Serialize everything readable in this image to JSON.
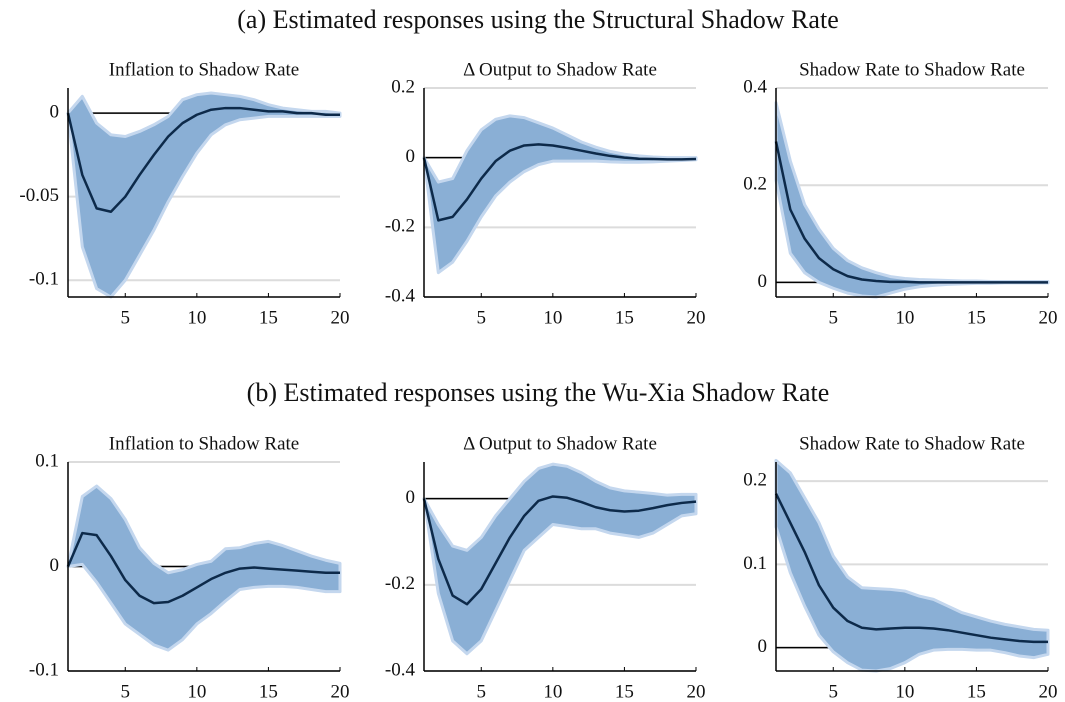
{
  "headings": [
    "(a) Estimated responses using the Structural Shadow Rate",
    "(b) Estimated responses using the Wu-Xia Shadow Rate"
  ],
  "chart_data": [
    {
      "type": "line",
      "title": "Inflation to Shadow Rate",
      "x": [
        1,
        2,
        3,
        4,
        5,
        6,
        7,
        8,
        9,
        10,
        11,
        12,
        13,
        14,
        15,
        16,
        17,
        18,
        19,
        20
      ],
      "series": [
        {
          "color": "#0d2a4a",
          "values": [
            0,
            -0.037,
            -0.057,
            -0.059,
            -0.05,
            -0.037,
            -0.025,
            -0.014,
            -0.006,
            -0.001,
            0.002,
            0.003,
            0.003,
            0.002,
            0.001,
            0.001,
            0,
            0,
            -0.001,
            -0.001
          ]
        }
      ],
      "band": {
        "color": "#8aafd5",
        "upper": [
          0,
          0.01,
          -0.006,
          -0.013,
          -0.014,
          -0.011,
          -0.007,
          -0.002,
          0.008,
          0.011,
          0.012,
          0.011,
          0.01,
          0.008,
          0.005,
          0.003,
          0.002,
          0.001,
          0.001,
          0
        ],
        "lower": [
          0,
          -0.08,
          -0.105,
          -0.11,
          -0.1,
          -0.085,
          -0.07,
          -0.053,
          -0.038,
          -0.024,
          -0.013,
          -0.007,
          -0.004,
          -0.003,
          -0.002,
          -0.002,
          -0.002,
          -0.002,
          -0.002,
          -0.002
        ]
      },
      "xlim": [
        1,
        20
      ],
      "xticks": [
        5,
        10,
        15,
        20
      ],
      "ylim": [
        -0.11,
        0.015
      ],
      "yticks": [
        -0.1,
        -0.05,
        0
      ],
      "grid": true
    },
    {
      "type": "line",
      "title": "Δ Output to Shadow Rate",
      "x": [
        1,
        2,
        3,
        4,
        5,
        6,
        7,
        8,
        9,
        10,
        11,
        12,
        13,
        14,
        15,
        16,
        17,
        18,
        19,
        20
      ],
      "series": [
        {
          "color": "#0d2a4a",
          "values": [
            0,
            -0.18,
            -0.17,
            -0.12,
            -0.06,
            -0.01,
            0.02,
            0.035,
            0.038,
            0.035,
            0.028,
            0.02,
            0.012,
            0.005,
            0,
            -0.003,
            -0.004,
            -0.005,
            -0.005,
            -0.004
          ]
        }
      ],
      "band": {
        "color": "#8aafd5",
        "upper": [
          0,
          -0.07,
          -0.06,
          0.02,
          0.08,
          0.11,
          0.12,
          0.115,
          0.1,
          0.085,
          0.065,
          0.045,
          0.03,
          0.018,
          0.01,
          0.005,
          0.002,
          0,
          0,
          0
        ],
        "lower": [
          0,
          -0.33,
          -0.3,
          -0.24,
          -0.17,
          -0.11,
          -0.07,
          -0.04,
          -0.02,
          -0.01,
          -0.01,
          -0.01,
          -0.01,
          -0.012,
          -0.013,
          -0.013,
          -0.012,
          -0.01,
          -0.008,
          -0.006
        ]
      },
      "xlim": [
        1,
        20
      ],
      "xticks": [
        5,
        10,
        15,
        20
      ],
      "ylim": [
        -0.4,
        0.2
      ],
      "yticks": [
        -0.4,
        -0.2,
        0,
        0.2
      ],
      "grid": true
    },
    {
      "type": "line",
      "title": "Shadow Rate to Shadow Rate",
      "x": [
        1,
        2,
        3,
        4,
        5,
        6,
        7,
        8,
        9,
        10,
        11,
        12,
        13,
        14,
        15,
        16,
        17,
        18,
        19,
        20
      ],
      "series": [
        {
          "color": "#0d2a4a",
          "values": [
            0.29,
            0.15,
            0.09,
            0.05,
            0.027,
            0.013,
            0.006,
            0.003,
            0.001,
            0.001,
            0,
            0,
            0,
            0,
            0,
            0,
            0,
            0,
            0,
            0
          ]
        }
      ],
      "band": {
        "color": "#8aafd5",
        "upper": [
          0.37,
          0.25,
          0.16,
          0.11,
          0.07,
          0.045,
          0.03,
          0.02,
          0.012,
          0.008,
          0.006,
          0.005,
          0.004,
          0.003,
          0.003,
          0.002,
          0.002,
          0.002,
          0.002,
          0.002
        ],
        "lower": [
          0.21,
          0.06,
          0.02,
          0,
          -0.012,
          -0.022,
          -0.028,
          -0.03,
          -0.022,
          -0.014,
          -0.009,
          -0.006,
          -0.004,
          -0.003,
          -0.002,
          -0.002,
          -0.001,
          -0.001,
          -0.001,
          -0.001
        ]
      },
      "xlim": [
        1,
        20
      ],
      "xticks": [
        5,
        10,
        15,
        20
      ],
      "ylim": [
        -0.03,
        0.4
      ],
      "yticks": [
        0,
        0.2,
        0.4
      ],
      "grid": true
    },
    {
      "type": "line",
      "title": "Inflation to Shadow Rate",
      "x": [
        1,
        2,
        3,
        4,
        5,
        6,
        7,
        8,
        9,
        10,
        11,
        12,
        13,
        14,
        15,
        16,
        17,
        18,
        19,
        20
      ],
      "series": [
        {
          "color": "#0d2a4a",
          "values": [
            0,
            0.032,
            0.03,
            0.01,
            -0.013,
            -0.028,
            -0.035,
            -0.034,
            -0.028,
            -0.02,
            -0.012,
            -0.006,
            -0.002,
            -0.001,
            -0.002,
            -0.003,
            -0.004,
            -0.005,
            -0.006,
            -0.006
          ]
        }
      ],
      "band": {
        "color": "#8aafd5",
        "upper": [
          0,
          0.067,
          0.077,
          0.065,
          0.045,
          0.018,
          0.003,
          -0.006,
          -0.003,
          0.002,
          0.005,
          0.017,
          0.018,
          0.022,
          0.024,
          0.02,
          0.015,
          0.01,
          0.006,
          0.003
        ],
        "lower": [
          0,
          0.002,
          -0.015,
          -0.035,
          -0.055,
          -0.065,
          -0.075,
          -0.08,
          -0.07,
          -0.055,
          -0.045,
          -0.033,
          -0.022,
          -0.02,
          -0.019,
          -0.019,
          -0.02,
          -0.022,
          -0.024,
          -0.024
        ]
      },
      "xlim": [
        1,
        20
      ],
      "xticks": [
        5,
        10,
        15,
        20
      ],
      "ylim": [
        -0.1,
        0.1
      ],
      "yticks": [
        -0.1,
        0,
        0.1
      ],
      "grid": true
    },
    {
      "type": "line",
      "title": "Δ Output to Shadow Rate",
      "x": [
        1,
        2,
        3,
        4,
        5,
        6,
        7,
        8,
        9,
        10,
        11,
        12,
        13,
        14,
        15,
        16,
        17,
        18,
        19,
        20
      ],
      "series": [
        {
          "color": "#0d2a4a",
          "values": [
            0,
            -0.14,
            -0.225,
            -0.245,
            -0.21,
            -0.15,
            -0.09,
            -0.04,
            -0.005,
            0.005,
            0.002,
            -0.008,
            -0.02,
            -0.027,
            -0.03,
            -0.028,
            -0.022,
            -0.015,
            -0.01,
            -0.007
          ]
        }
      ],
      "band": {
        "color": "#8aafd5",
        "upper": [
          0,
          -0.06,
          -0.11,
          -0.12,
          -0.09,
          -0.04,
          0,
          0.04,
          0.07,
          0.08,
          0.075,
          0.06,
          0.04,
          0.025,
          0.018,
          0.015,
          0.012,
          0.008,
          0.01,
          0.01
        ],
        "lower": [
          0,
          -0.22,
          -0.33,
          -0.36,
          -0.33,
          -0.26,
          -0.19,
          -0.12,
          -0.09,
          -0.06,
          -0.065,
          -0.07,
          -0.07,
          -0.08,
          -0.085,
          -0.09,
          -0.08,
          -0.06,
          -0.04,
          -0.035
        ]
      },
      "xlim": [
        1,
        20
      ],
      "xticks": [
        5,
        10,
        15,
        20
      ],
      "ylim": [
        -0.4,
        0.085
      ],
      "yticks": [
        -0.4,
        -0.2,
        0
      ],
      "grid": true
    },
    {
      "type": "line",
      "title": "Shadow Rate to Shadow Rate",
      "x": [
        1,
        2,
        3,
        4,
        5,
        6,
        7,
        8,
        9,
        10,
        11,
        12,
        13,
        14,
        15,
        16,
        17,
        18,
        19,
        20
      ],
      "series": [
        {
          "color": "#0d2a4a",
          "values": [
            0.185,
            0.15,
            0.115,
            0.075,
            0.048,
            0.032,
            0.024,
            0.022,
            0.023,
            0.024,
            0.024,
            0.023,
            0.021,
            0.018,
            0.015,
            0.012,
            0.01,
            0.008,
            0.007,
            0.007
          ]
        }
      ],
      "band": {
        "color": "#8aafd5",
        "upper": [
          0.225,
          0.21,
          0.18,
          0.15,
          0.11,
          0.085,
          0.072,
          0.071,
          0.07,
          0.068,
          0.062,
          0.058,
          0.05,
          0.042,
          0.037,
          0.032,
          0.028,
          0.025,
          0.022,
          0.021
        ],
        "lower": [
          0.145,
          0.09,
          0.05,
          0.015,
          -0.005,
          -0.018,
          -0.027,
          -0.028,
          -0.025,
          -0.018,
          -0.008,
          -0.003,
          -0.002,
          -0.002,
          -0.003,
          -0.003,
          -0.006,
          -0.01,
          -0.012,
          -0.008
        ]
      },
      "xlim": [
        1,
        20
      ],
      "xticks": [
        5,
        10,
        15,
        20
      ],
      "ylim": [
        -0.028,
        0.223
      ],
      "yticks": [
        0,
        0.1,
        0.2
      ],
      "grid": true
    }
  ]
}
